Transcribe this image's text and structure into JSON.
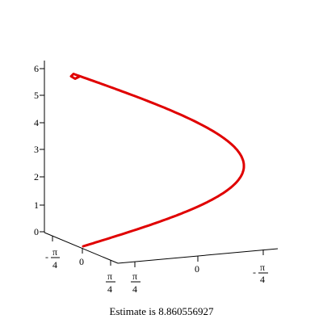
{
  "caption": "Estimate is 8.860556927",
  "chart_data": {
    "type": "line",
    "projection": "3d",
    "z_axis": {
      "ticks": [
        "0",
        "1",
        "2",
        "3",
        "4",
        "5",
        "6"
      ],
      "range": [
        0,
        6
      ]
    },
    "x_axis": {
      "ticks": [
        {
          "value": "-π/4",
          "num": "π",
          "den": "4",
          "neg": true
        },
        {
          "value": "0",
          "text": "0"
        },
        {
          "value": "π/4",
          "num": "π",
          "den": "4",
          "neg": false
        }
      ]
    },
    "y_axis": {
      "ticks": [
        {
          "value": "π/4",
          "num": "π",
          "den": "4",
          "neg": false
        },
        {
          "value": "0",
          "text": "0"
        },
        {
          "value": "-π/4",
          "num": "π",
          "den": "4",
          "neg": true
        }
      ]
    },
    "series": [
      {
        "color": "#e00000",
        "param_range": [
          0,
          6.2
        ]
      }
    ]
  }
}
